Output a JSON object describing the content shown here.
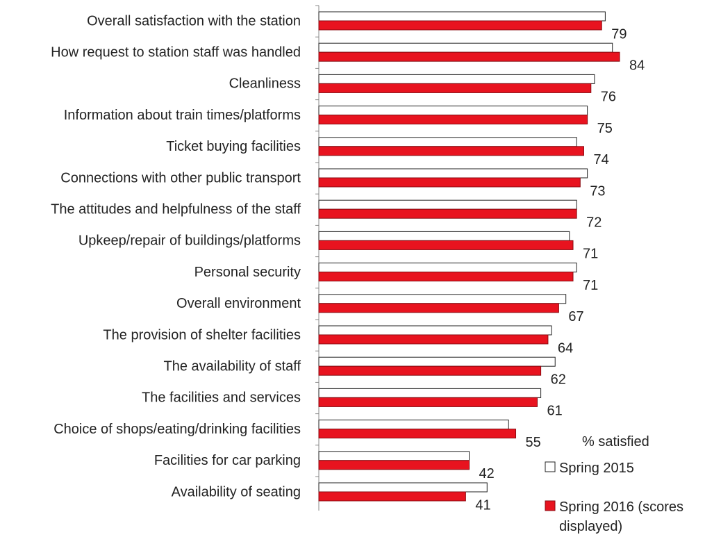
{
  "chart_data": {
    "type": "bar",
    "orientation": "horizontal",
    "categories": [
      "Overall satisfaction with the station",
      "How request to station staff was handled",
      "Cleanliness",
      "Information about train times/platforms",
      "Ticket buying facilities",
      "Connections with other public transport",
      "The attitudes and helpfulness of the staff",
      "Upkeep/repair of buildings/platforms",
      "Personal security",
      "Overall environment",
      "The provision of shelter facilities",
      "The availability of staff",
      "The facilities and services",
      "Choice of shops/eating/drinking facilities",
      "Facilities for car parking",
      "Availability of seating"
    ],
    "series": [
      {
        "name": "Spring 2015",
        "color": "#ffffff",
        "values": [
          80,
          82,
          77,
          75,
          72,
          75,
          72,
          70,
          72,
          69,
          65,
          66,
          62,
          53,
          42,
          47
        ]
      },
      {
        "name": "Spring 2016 (scores displayed)",
        "color": "#e8131f",
        "data_labels": true,
        "values": [
          79,
          84,
          76,
          75,
          74,
          73,
          72,
          71,
          71,
          67,
          64,
          62,
          61,
          55,
          42,
          41
        ]
      }
    ],
    "legend_title": "% satisfied"
  }
}
